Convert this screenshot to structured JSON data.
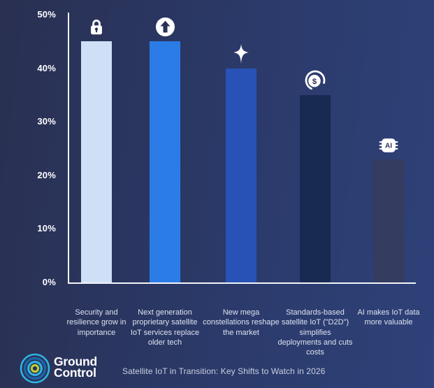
{
  "chart_data": {
    "type": "bar",
    "title": "Satellite IoT in Transition: Key Shifts to Watch in 2026",
    "categories": [
      "Security and resilience grow in importance",
      "Next generation proprietary satellite IoT services replace older tech",
      "New mega constellations reshape the market",
      "Standards-based satellite IoT (\"D2D\") simplifies deployments and cuts costs",
      "AI makes IoT data more valuable"
    ],
    "values": [
      45,
      45,
      40,
      35,
      23
    ],
    "unit": "%",
    "ylim": [
      0,
      50
    ],
    "ytick_labels": [
      "50%",
      "40%",
      "30%",
      "20%",
      "10%",
      "0%"
    ],
    "grid": false,
    "legend": false,
    "bar_colors": [
      "#cfdff6",
      "#2b7ce6",
      "#2952b6",
      "#192a52",
      "#343c5f"
    ],
    "bar_icons": [
      "lock-icon",
      "growth-arrow-icon",
      "sparkle-icon",
      "cost-coin-icon",
      "ai-chip-icon"
    ]
  },
  "footer": {
    "logo_text_line1": "Ground",
    "logo_text_line2": "Control",
    "caption": "Satellite IoT in Transition: Key Shifts to Watch in 2026"
  },
  "colors": {
    "background_from": "#293051",
    "background_to": "#2e4179",
    "axis": "#f2f4f9",
    "tick_label": "#ffffff",
    "category_label": "#dde2f0",
    "caption": "#c9cfe0",
    "icon_foreground": "#2a3154",
    "icon_background": "#ffffff",
    "logo_ring_cyan": "#2fb4e3",
    "logo_ring_blue": "#1a67a9",
    "logo_ring_lime": "#bfd231"
  }
}
